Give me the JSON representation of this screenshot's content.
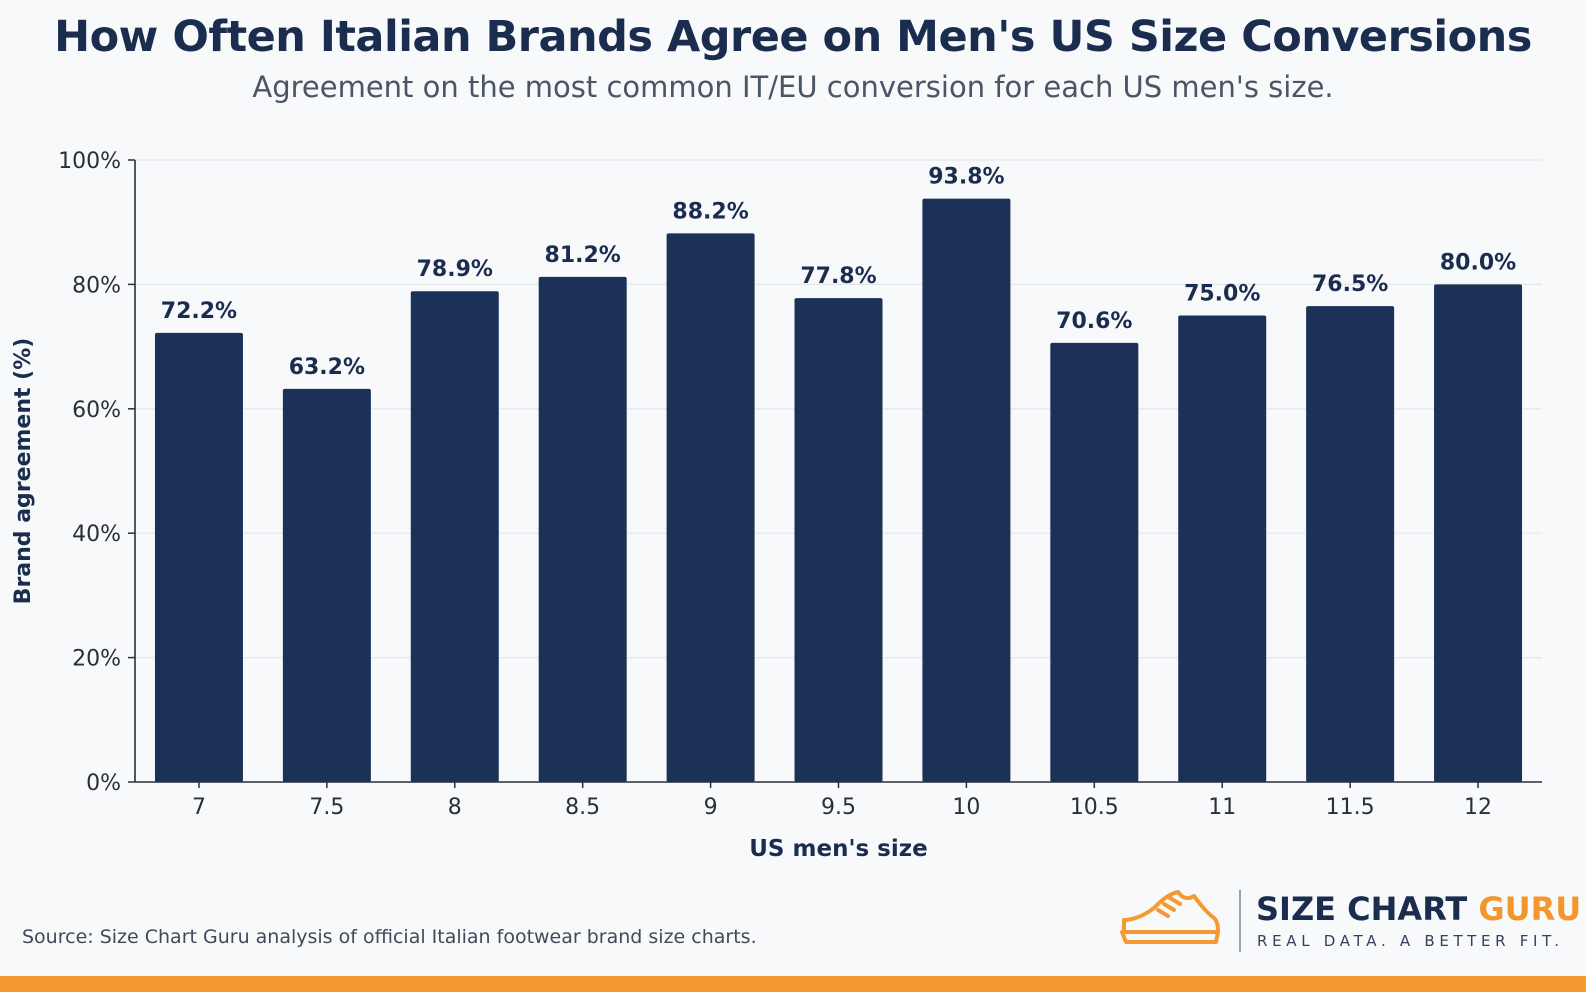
{
  "title": "How Often Italian Brands Agree on Men's US Size Conversions",
  "subtitle": "Agreement on the most common IT/EU conversion for each US men's size.",
  "source": "Source: Size Chart Guru analysis of official Italian footwear brand size charts.",
  "brand": {
    "name_part1": "SIZE CHART ",
    "name_part2": "GURU",
    "tagline": "REAL DATA. A BETTER FIT.",
    "logo_icon": "sneaker-icon"
  },
  "colors": {
    "bar": "#1c3157",
    "accent": "#f39a33",
    "title": "#1b2d4f",
    "grid": "#e3e6eb",
    "axis": "#2b2f36"
  },
  "chart_data": {
    "type": "bar",
    "xlabel": "US men's size",
    "ylabel": "Brand agreement (%)",
    "categories": [
      "7",
      "7.5",
      "8",
      "8.5",
      "9",
      "9.5",
      "10",
      "10.5",
      "11",
      "11.5",
      "12"
    ],
    "values": [
      72.2,
      63.2,
      78.9,
      81.2,
      88.2,
      77.8,
      93.8,
      70.6,
      75.0,
      76.5,
      80.0
    ],
    "data_labels": [
      "72.2%",
      "63.2%",
      "78.9%",
      "81.2%",
      "88.2%",
      "77.8%",
      "93.8%",
      "70.6%",
      "75.0%",
      "76.5%",
      "80.0%"
    ],
    "ylim": [
      0,
      100
    ],
    "yticks": [
      0,
      20,
      40,
      60,
      80,
      100
    ],
    "ytick_labels": [
      "0%",
      "20%",
      "40%",
      "60%",
      "80%",
      "100%"
    ],
    "grid": "horizontal",
    "legend": "none"
  }
}
